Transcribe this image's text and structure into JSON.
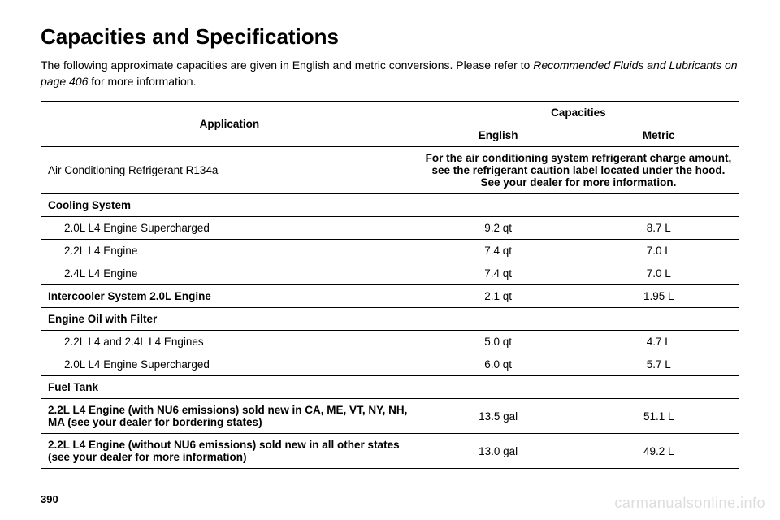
{
  "title": "Capacities and Specifications",
  "intro_part1": "The following approximate capacities are given in English and metric conversions. Please refer to ",
  "intro_italic": "Recommended Fluids and Lubricants on page 406",
  "intro_part2": " for more information.",
  "headers": {
    "application": "Application",
    "capacities": "Capacities",
    "english": "English",
    "metric": "Metric"
  },
  "ac_row": {
    "app": "Air Conditioning Refrigerant R134a",
    "note": "For the air conditioning system refrigerant charge amount, see the refrigerant caution label located under the hood. See your dealer for more information."
  },
  "sections": {
    "cooling": "Cooling System",
    "intercooler": "Intercooler System 2.0L Engine",
    "engine_oil": "Engine Oil with Filter",
    "fuel_tank": "Fuel Tank"
  },
  "rows": {
    "c1": {
      "app": "2.0L L4 Engine Supercharged",
      "en": "9.2 qt",
      "me": "8.7 L"
    },
    "c2": {
      "app": "2.2L L4 Engine",
      "en": "7.4 qt",
      "me": "7.0 L"
    },
    "c3": {
      "app": "2.4L L4 Engine",
      "en": "7.4 qt",
      "me": "7.0 L"
    },
    "ic": {
      "en": "2.1 qt",
      "me": "1.95 L"
    },
    "e1": {
      "app": "2.2L L4 and 2.4L L4 Engines",
      "en": "5.0 qt",
      "me": "4.7 L"
    },
    "e2": {
      "app": "2.0L L4 Engine Supercharged",
      "en": "6.0 qt",
      "me": "5.7 L"
    },
    "f1": {
      "app": "2.2L L4 Engine (with NU6 emissions) sold new in CA, ME, VT, NY, NH, MA (see your dealer for bordering states)",
      "en": "13.5 gal",
      "me": "51.1 L"
    },
    "f2": {
      "app": "2.2L L4 Engine (without NU6 emissions) sold new in all other states (see your dealer for more information)",
      "en": "13.0 gal",
      "me": "49.2 L"
    }
  },
  "page_number": "390",
  "watermark": "carmanualsonline.info"
}
